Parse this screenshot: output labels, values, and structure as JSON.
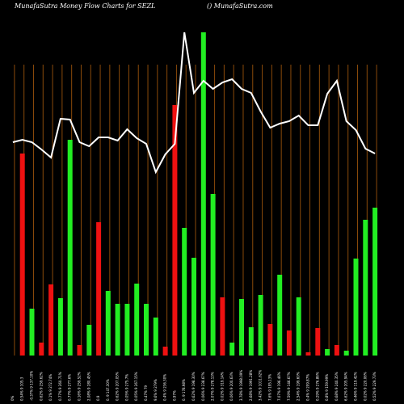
{
  "header": {
    "title_left": "MunafaSutra  Money Flow  Charts for SEZL",
    "title_right": "() MunafaSutra.com"
  },
  "colors": {
    "background": "#000000",
    "up": "#22ee22",
    "down": "#ee1111",
    "line": "#ffffff",
    "grid": "#8a4a0a",
    "text": "#ffffff"
  },
  "chart_data": {
    "type": "bar",
    "title": "MunafaSutra  Money Flow  Charts for SEZL",
    "grid": true,
    "categories": [
      "0%",
      "0.54% 9 105.3",
      "-0.37% 9 137.10%",
      "0.62% 9 259.62%",
      "0.1% 9 272.74%",
      "0.77% 9 260.71%",
      "0.77% 9 277.6%",
      "0.16% 9 259.52%",
      "2.08% 9 280.45%",
      "0.9",
      "0. 9 147.30%",
      "0.62% 9 207.05%",
      "0.05% 9 275.7%",
      "0.05% 9 267.15%",
      "0.47% 79",
      "9.6% 9 279%",
      "0.4% 9 236.30%",
      "0.97%",
      "0. 9 178.98%",
      "0.62% 9 198.30%",
      "0.06% 9 238.67%",
      "2.07% 9 278.13%",
      "0.02% 9 319.14%",
      "0.06% 9 200.63%",
      "3.78% 9 1998.09%",
      "2.68% 9 1991.28%",
      "3.42% 9 1011.62%",
      "7.6% 9 195.13%",
      "7.07% 9 196.46%",
      "7.59% 9 146.67%",
      "2.54% 9 199.60%",
      "0.4% 9 209.87%",
      "0.29% 9 276.86%",
      "0.8% 9 159.99%",
      "0.68% 9 240.35%",
      "6.62% 9 205.94%",
      "0.46% 9 119.42%",
      "0.02% 9 220.06%",
      "0.52% 9 229.73%",
      "0.14% 9 148.83%",
      "0.69% 9 187.53%",
      "0.73% 9 202.10%",
      "0.15% 9 270.60%",
      "0.91% 9 206.10%",
      "0.92% 9 215.95%"
    ],
    "bar_colors": [
      "green",
      "red",
      "green",
      "red",
      "red",
      "green",
      "green",
      "red",
      "green",
      "red",
      "green",
      "green",
      "green",
      "green",
      "green",
      "green",
      "red",
      "red",
      "green",
      "green",
      "green",
      "green",
      "red",
      "green",
      "green",
      "green",
      "green",
      "red",
      "green",
      "red",
      "green",
      "red",
      "red",
      "green",
      "red",
      "green",
      "green",
      "green",
      "green",
      "green",
      "red",
      "red",
      "red",
      "red",
      "red"
    ],
    "values": [
      0,
      250,
      58,
      16,
      88,
      71,
      267,
      13,
      38,
      165,
      80,
      64,
      64,
      89,
      64,
      47,
      11,
      310,
      158,
      121,
      400,
      200,
      72,
      16,
      70,
      35,
      75,
      39,
      100,
      31,
      72,
      4,
      34,
      8,
      13,
      6,
      120,
      168,
      183,
      16,
      200,
      74,
      0,
      0,
      0
    ],
    "line_values": [
      264,
      267,
      264,
      255,
      245,
      293,
      292,
      264,
      259,
      270,
      270,
      266,
      280,
      269,
      262,
      227,
      249,
      262,
      400,
      325,
      340,
      330,
      338,
      342,
      330,
      325,
      302,
      282,
      287,
      290,
      297,
      285,
      285,
      324,
      340,
      290,
      279,
      256,
      250,
      0,
      0,
      0,
      0,
      0,
      0
    ],
    "ylim": [
      0,
      440
    ]
  }
}
